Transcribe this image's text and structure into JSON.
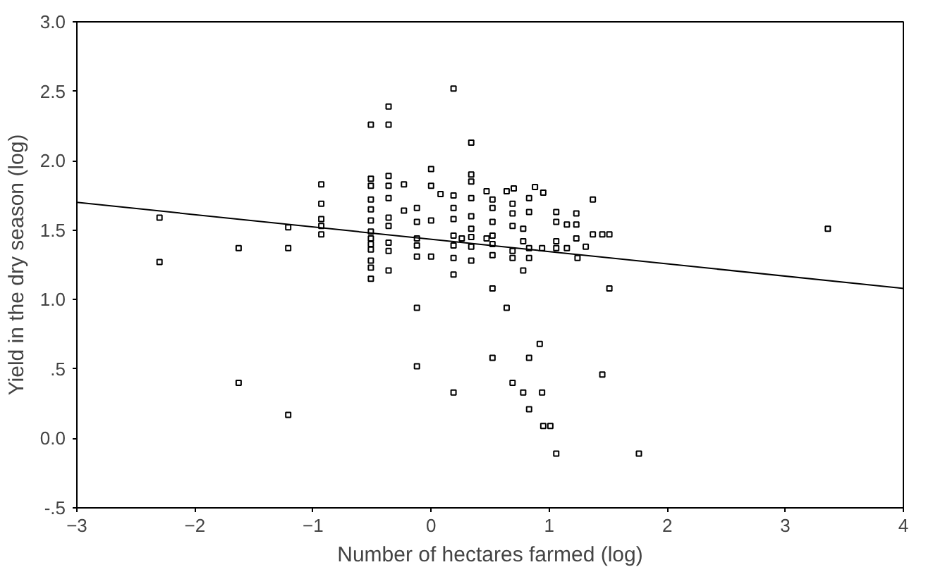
{
  "chart_data": {
    "type": "scatter",
    "xlabel": "Number of hectares farmed (log)",
    "ylabel": "Yield in the dry season (log)",
    "xlim": [
      -3,
      4
    ],
    "ylim": [
      -0.5,
      3.0
    ],
    "xticks": [
      -3,
      -2,
      -1,
      0,
      1,
      2,
      3,
      4
    ],
    "yticks": [
      {
        "value": -0.5,
        "label": "-.5"
      },
      {
        "value": 0,
        "label": "0.0"
      },
      {
        "value": 0.5,
        "label": ".5"
      },
      {
        "value": 1,
        "label": "1.0"
      },
      {
        "value": 1.5,
        "label": "1.5"
      },
      {
        "value": 2,
        "label": "2.0"
      },
      {
        "value": 2.5,
        "label": "2.5"
      },
      {
        "value": 3,
        "label": "3.0"
      }
    ],
    "grid": false,
    "marker": "square",
    "series": [
      {
        "color": "#000000",
        "x": [
          -2.3,
          -2.3,
          -1.63,
          -1.63,
          -1.21,
          -1.21,
          -1.21,
          -0.93,
          -0.93,
          -0.93,
          -0.93,
          -0.93,
          -0.51,
          -0.51,
          -0.51,
          -0.51,
          -0.51,
          -0.51,
          -0.51,
          -0.51,
          -0.51,
          -0.51,
          -0.51,
          -0.51,
          -0.51,
          -0.36,
          -0.36,
          -0.36,
          -0.36,
          -0.36,
          -0.36,
          -0.36,
          -0.36,
          -0.36,
          -0.36,
          -0.23,
          -0.23,
          -0.12,
          -0.12,
          -0.12,
          -0.12,
          -0.12,
          -0.12,
          -0.12,
          0.0,
          0.0,
          0.0,
          0.0,
          0.08,
          0.19,
          0.34,
          0.34,
          0.34,
          0.34,
          0.34,
          0.34,
          0.34,
          0.34,
          0.34,
          0.19,
          0.19,
          0.19,
          0.19,
          0.19,
          0.19,
          0.19,
          0.19,
          0.26,
          0.47,
          0.47,
          0.52,
          0.52,
          0.52,
          0.52,
          0.52,
          0.52,
          0.52,
          0.52,
          0.64,
          0.7,
          0.69,
          0.69,
          0.69,
          0.69,
          0.69,
          0.69,
          0.64,
          0.78,
          0.78,
          0.78,
          0.78,
          0.83,
          0.83,
          0.83,
          0.83,
          0.83,
          0.83,
          0.88,
          0.95,
          0.94,
          0.92,
          0.94,
          0.95,
          1.01,
          1.06,
          1.06,
          1.06,
          1.06,
          1.06,
          1.15,
          1.15,
          1.23,
          1.23,
          1.23,
          1.24,
          1.31,
          1.37,
          1.37,
          1.45,
          1.51,
          1.51,
          1.45,
          1.76,
          3.36
        ],
        "values": [
          1.59,
          1.27,
          1.37,
          0.4,
          1.52,
          1.37,
          0.17,
          1.83,
          1.69,
          1.58,
          1.53,
          1.47,
          2.26,
          1.87,
          1.82,
          1.72,
          1.65,
          1.57,
          1.49,
          1.44,
          1.4,
          1.36,
          1.28,
          1.23,
          1.15,
          2.39,
          2.26,
          1.89,
          1.82,
          1.73,
          1.59,
          1.53,
          1.41,
          1.35,
          1.21,
          1.83,
          1.64,
          1.66,
          1.56,
          1.44,
          1.39,
          1.31,
          0.94,
          0.52,
          1.94,
          1.82,
          1.57,
          1.31,
          1.76,
          2.52,
          2.13,
          1.9,
          1.85,
          1.73,
          1.6,
          1.51,
          1.45,
          1.38,
          1.28,
          1.75,
          1.66,
          1.58,
          1.46,
          1.39,
          1.3,
          1.18,
          0.33,
          1.44,
          1.78,
          1.44,
          1.72,
          1.66,
          1.56,
          1.46,
          1.4,
          1.32,
          1.08,
          0.58,
          1.78,
          1.8,
          1.69,
          1.62,
          1.53,
          1.35,
          1.3,
          0.4,
          0.94,
          1.51,
          1.42,
          1.21,
          0.33,
          1.73,
          1.63,
          1.37,
          1.3,
          0.58,
          0.21,
          1.81,
          1.77,
          1.37,
          0.68,
          0.33,
          0.09,
          0.09,
          -0.11,
          1.63,
          1.56,
          1.42,
          1.37,
          1.54,
          1.37,
          1.62,
          1.54,
          1.44,
          1.3,
          1.38,
          1.72,
          1.47,
          1.47,
          1.47,
          1.08,
          0.46,
          -0.11,
          1.51
        ]
      },
      {
        "type": "line",
        "color": "#000000",
        "marker": "none",
        "x": [
          -3,
          4
        ],
        "values": [
          1.7,
          1.08
        ]
      }
    ]
  }
}
